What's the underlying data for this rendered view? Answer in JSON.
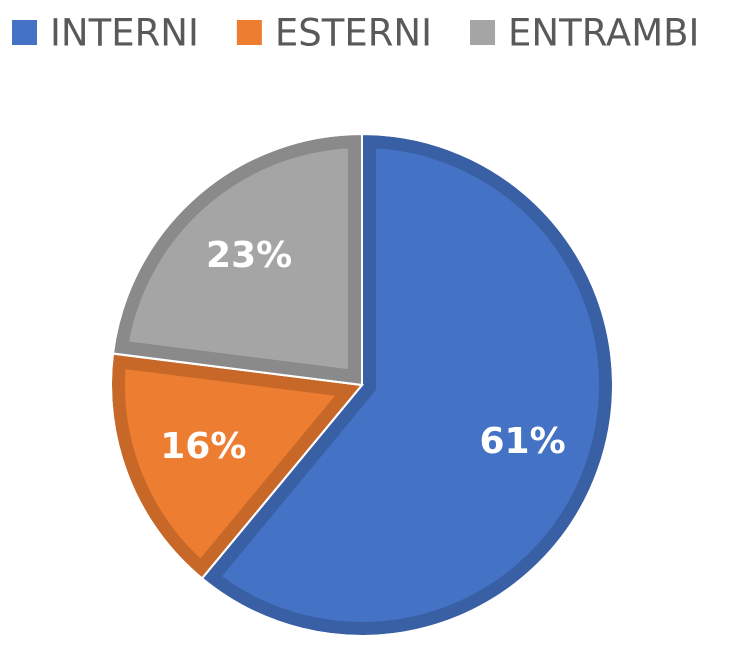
{
  "chart_data": {
    "type": "pie",
    "categories": [
      "INTERNI",
      "ESTERNI",
      "ENTRAMBI"
    ],
    "values": [
      61,
      16,
      23
    ],
    "value_labels": [
      "61%",
      "16%",
      "23%"
    ],
    "colors": [
      "#4472c4",
      "#ed7d31",
      "#a5a5a5"
    ],
    "legend": "top"
  }
}
